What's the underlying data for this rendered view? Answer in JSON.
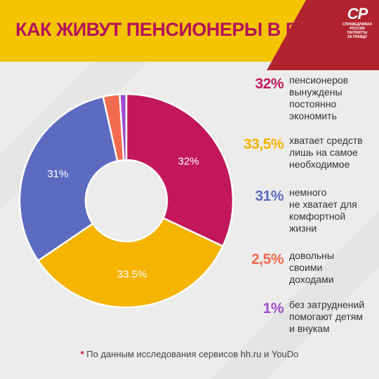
{
  "header": {
    "title": "КАК ЖИВУТ ПЕНСИОНЕРЫ В РОССИИ"
  },
  "logo": {
    "mark": "СР",
    "lines": [
      "СПРАВЕДЛИВАЯ",
      "РОССИЯ",
      "ПАТРИОТЫ",
      "ЗА ПРАВДУ"
    ]
  },
  "colors": {
    "title_bar": "#f5c400",
    "title_text": "#b4135a",
    "logo_bg": "#b0232f"
  },
  "chart_data": {
    "type": "pie",
    "donut": true,
    "title": "",
    "slices": [
      {
        "value": 32,
        "label": "32%",
        "pct_label": "32%",
        "text": "пенсионеров\nвынуждены\nпостоянно\nэкономить",
        "color": "#c2185b"
      },
      {
        "value": 33.5,
        "label": "33.5%",
        "pct_label": "33,5%",
        "text": "хватает средств\nлишь на самое\nнеобходимое",
        "color": "#f4b400"
      },
      {
        "value": 31,
        "label": "31%",
        "pct_label": "31%",
        "text": "немного\nне хватает для\nкомфортной\nжизни",
        "color": "#5c6bc0"
      },
      {
        "value": 2.5,
        "label": "",
        "pct_label": "2,5%",
        "text": "довольны\nсвоими\nдоходами",
        "color": "#f26b4f"
      },
      {
        "value": 1,
        "label": "",
        "pct_label": "1%",
        "text": "без затруднений\nпомогают детям\nи внукам",
        "color": "#9c4dcc"
      }
    ]
  },
  "footnote": {
    "star": "*",
    "text": "По данным исследования сервисов hh.ru и YouDo"
  }
}
